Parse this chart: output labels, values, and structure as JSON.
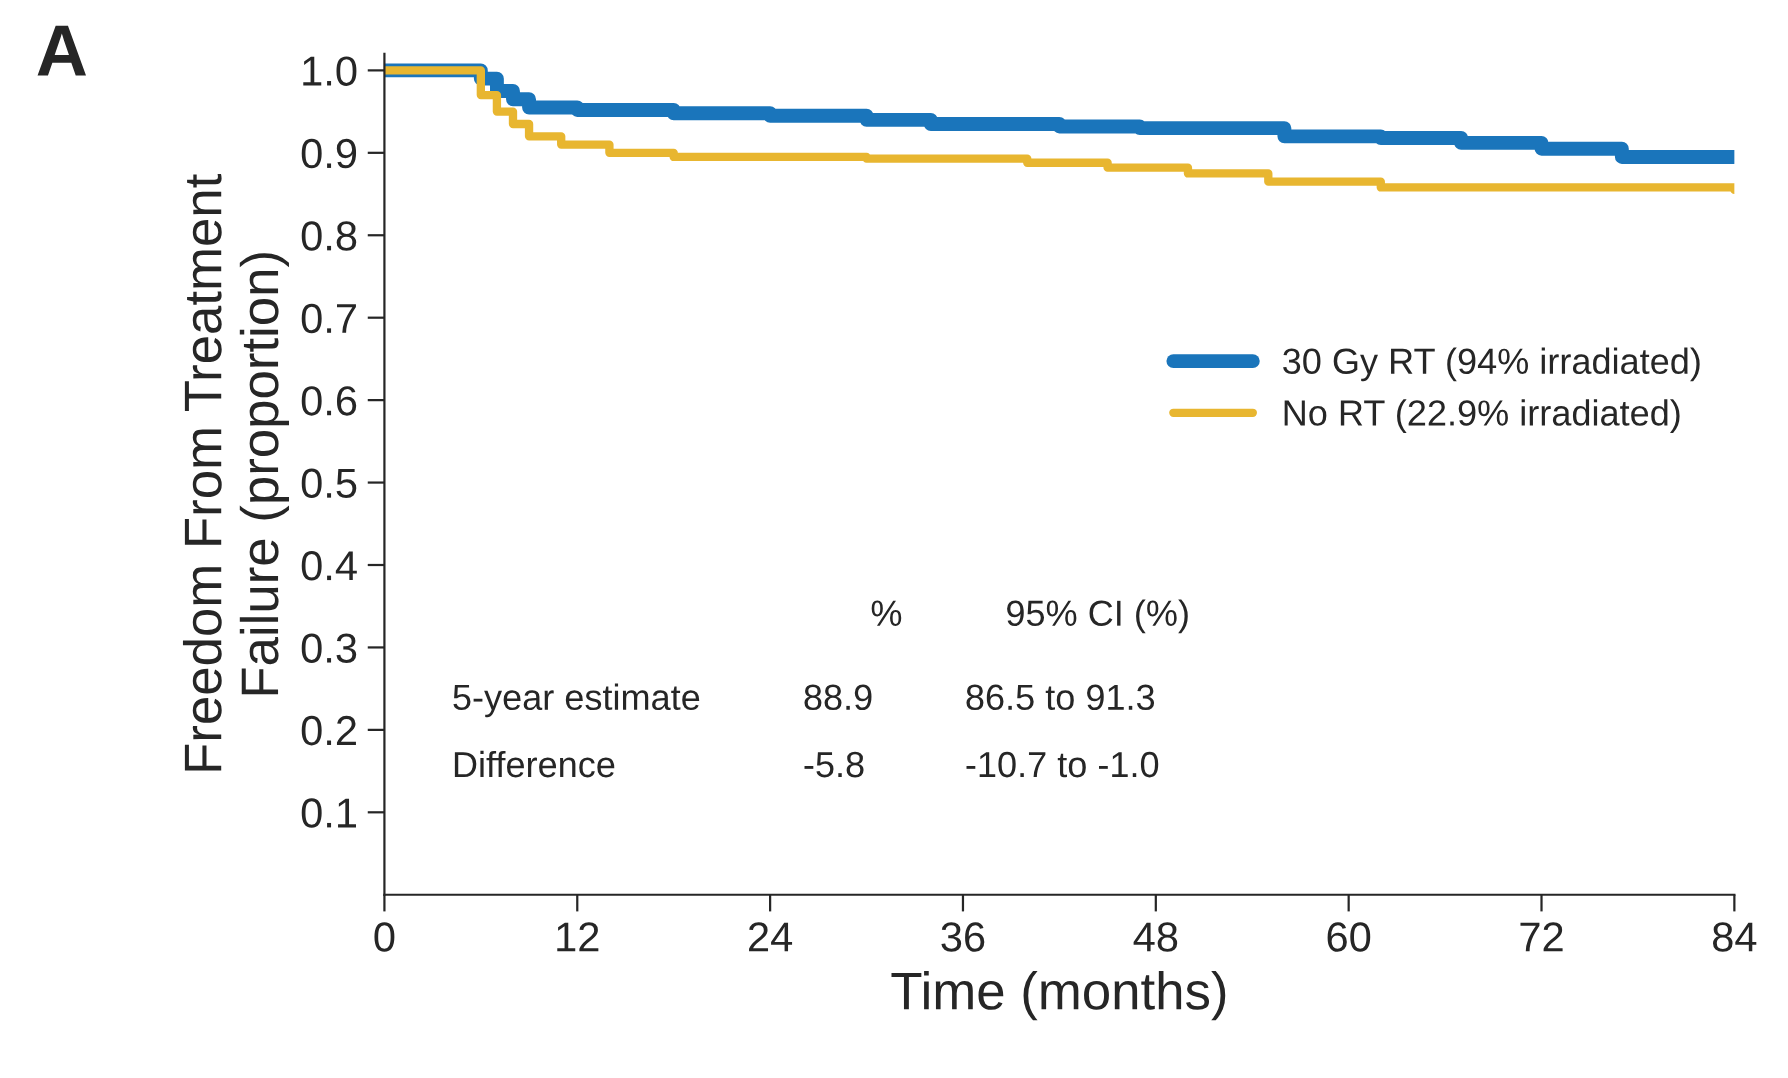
{
  "chart_data": {
    "type": "step",
    "title": "A",
    "xlabel": "Time (months)",
    "ylabel": "Freedom From Treatment\nFailure (proportion)",
    "xlim": [
      0,
      84
    ],
    "xticks": [
      0,
      12,
      24,
      36,
      48,
      60,
      72,
      84
    ],
    "ylim": [
      0,
      1.02
    ],
    "yticks": [
      0.1,
      0.2,
      0.3,
      0.4,
      0.5,
      0.6,
      0.7,
      0.8,
      0.9,
      {
        "value": 1.0,
        "label": "1.0"
      }
    ],
    "grid": false,
    "legend": "right",
    "marker": "none",
    "line_style": "solid",
    "series": [
      {
        "name": "30 Gy RT (94% irradiated)",
        "color": "#1a75bb",
        "x": [
          0,
          5,
          6,
          7,
          8,
          9,
          12,
          18,
          24,
          30,
          34,
          42,
          47,
          56,
          62,
          67,
          72,
          77,
          84
        ],
        "values": [
          1.0,
          1.0,
          0.99,
          0.975,
          0.965,
          0.955,
          0.952,
          0.948,
          0.945,
          0.94,
          0.935,
          0.932,
          0.93,
          0.92,
          0.918,
          0.912,
          0.905,
          0.895,
          0.895
        ]
      },
      {
        "name": "No RT (22.9% irradiated)",
        "color": "#e8b630",
        "x": [
          0,
          5,
          6,
          7,
          8,
          9,
          11,
          14,
          18,
          30,
          40,
          45,
          50,
          55,
          62,
          84
        ],
        "values": [
          1.0,
          1.0,
          0.97,
          0.95,
          0.935,
          0.92,
          0.91,
          0.9,
          0.895,
          0.893,
          0.888,
          0.882,
          0.875,
          0.865,
          0.858,
          0.855
        ]
      }
    ],
    "annotations": [
      "%",
      "95% CI (%)",
      "5-year estimate",
      "88.9",
      "86.5 to 91.3",
      "Difference",
      "-5.8",
      "-10.7 to -1.0"
    ]
  }
}
